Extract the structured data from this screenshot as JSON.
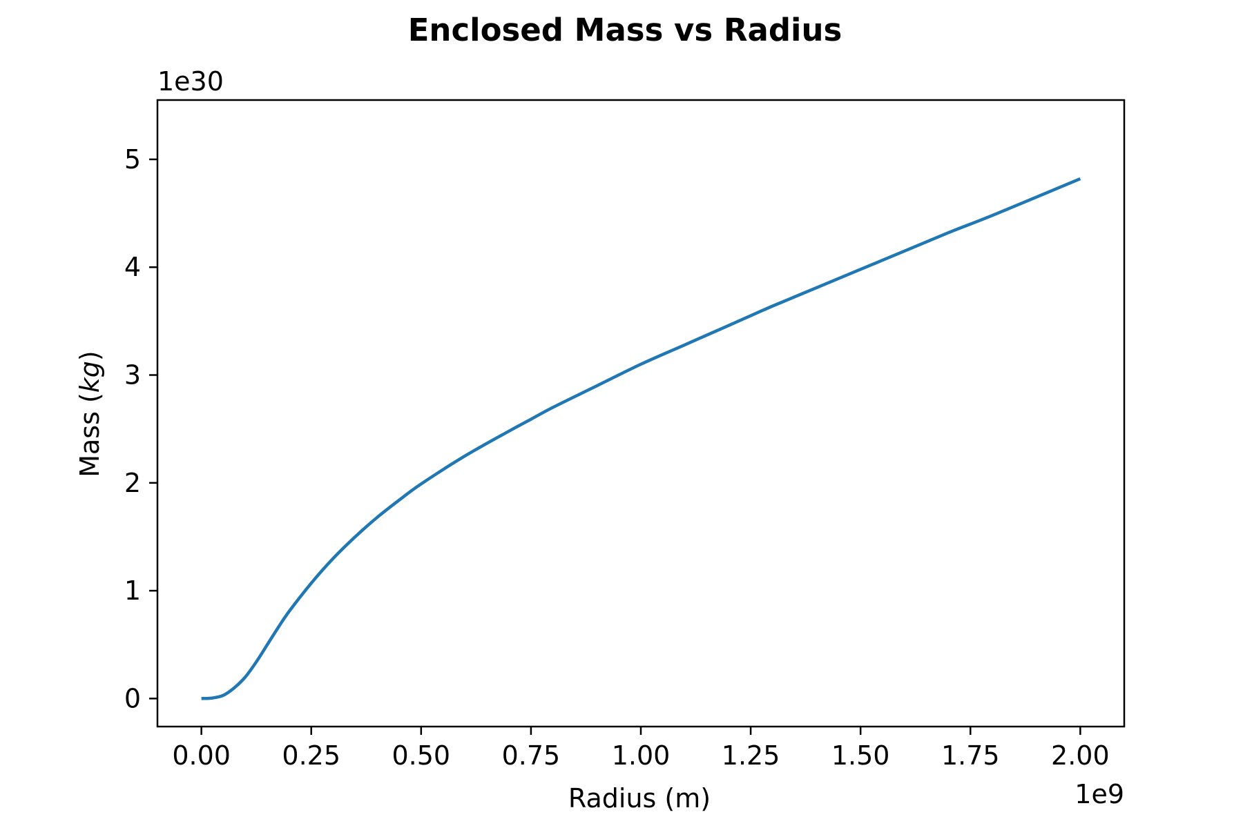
{
  "chart_data": {
    "type": "line",
    "title": "Enclosed Mass vs Radius",
    "xlabel": "Radius (m)",
    "ylabel_prefix": "Mass (",
    "ylabel_unit": "kg",
    "ylabel_suffix": ")",
    "x_offset_text": "1e9",
    "y_offset_text": "1e30",
    "xlim": [
      -0.1,
      2.1
    ],
    "ylim": [
      -0.26,
      5.55
    ],
    "x_ticks": [
      0.0,
      0.25,
      0.5,
      0.75,
      1.0,
      1.25,
      1.5,
      1.75,
      2.0
    ],
    "x_tick_labels": [
      "0.00",
      "0.25",
      "0.50",
      "0.75",
      "1.00",
      "1.25",
      "1.50",
      "1.75",
      "2.00"
    ],
    "y_ticks": [
      0,
      1,
      2,
      3,
      4,
      5
    ],
    "y_tick_labels": [
      "0",
      "1",
      "2",
      "3",
      "4",
      "5"
    ],
    "grid": false,
    "legend": false,
    "line_color": "#1f77b4",
    "series": [
      {
        "x": [
          0.0,
          0.025,
          0.05,
          0.075,
          0.1,
          0.125,
          0.15,
          0.175,
          0.2,
          0.25,
          0.3,
          0.35,
          0.4,
          0.45,
          0.5,
          0.6,
          0.7,
          0.75,
          0.8,
          0.9,
          1.0,
          1.1,
          1.2,
          1.25,
          1.3,
          1.4,
          1.5,
          1.6,
          1.7,
          1.75,
          1.8,
          1.9,
          2.0
        ],
        "y": [
          0.0,
          0.005,
          0.03,
          0.1,
          0.2,
          0.34,
          0.5,
          0.66,
          0.81,
          1.07,
          1.3,
          1.5,
          1.68,
          1.84,
          1.99,
          2.25,
          2.48,
          2.59,
          2.7,
          2.9,
          3.1,
          3.28,
          3.46,
          3.55,
          3.64,
          3.81,
          3.98,
          4.15,
          4.32,
          4.4,
          4.48,
          4.65,
          4.82
        ]
      }
    ]
  }
}
